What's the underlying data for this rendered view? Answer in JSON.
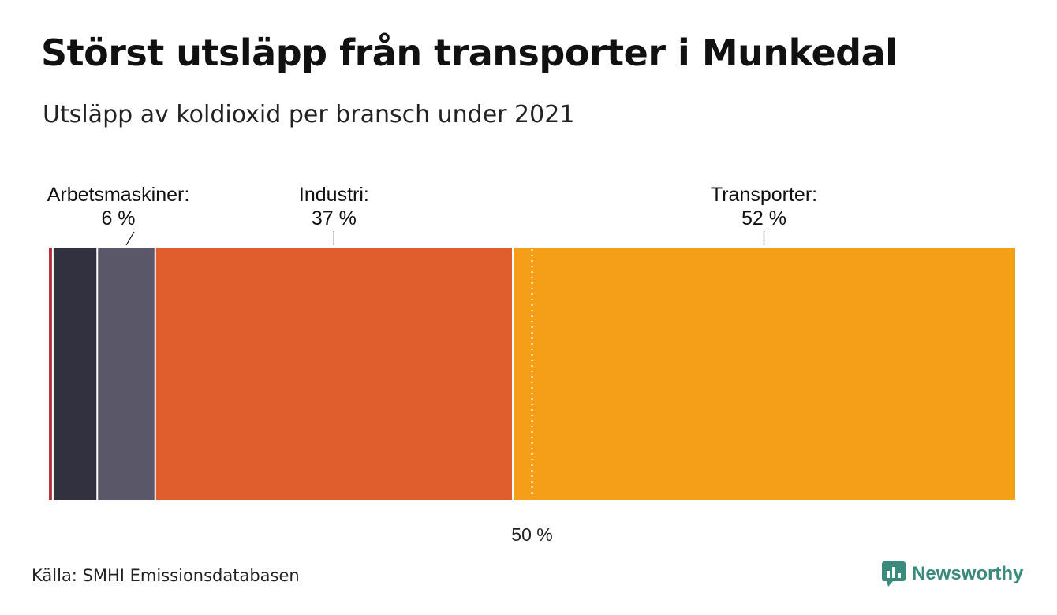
{
  "title": "Störst utsläpp från transporter i Munkedal",
  "subtitle": "Utsläpp av koldioxid per bransch under 2021",
  "source": "Källa: SMHI Emissionsdatabasen",
  "brand": "Newsworthy",
  "chart_data": {
    "type": "bar",
    "orientation": "horizontal-stacked",
    "range": [
      0,
      100
    ],
    "reference_line": {
      "value": 50,
      "label": "50 %"
    },
    "segments": [
      {
        "key": "seg-1",
        "value": 0.4,
        "color": "#b0313a",
        "label": "",
        "value_label": ""
      },
      {
        "key": "seg-2",
        "value": 4.6,
        "color": "#32313f",
        "label": "",
        "value_label": ""
      },
      {
        "key": "arbetsmaskiner",
        "value": 6,
        "color": "#5a5868",
        "label": "Arbetsmaskiner:",
        "value_label": "6 %"
      },
      {
        "key": "industri",
        "value": 37,
        "color": "#e05e2e",
        "label": "Industri:",
        "value_label": "37 %"
      },
      {
        "key": "transporter",
        "value": 52,
        "color": "#f59e18",
        "label": "Transporter:",
        "value_label": "52 %"
      }
    ]
  }
}
